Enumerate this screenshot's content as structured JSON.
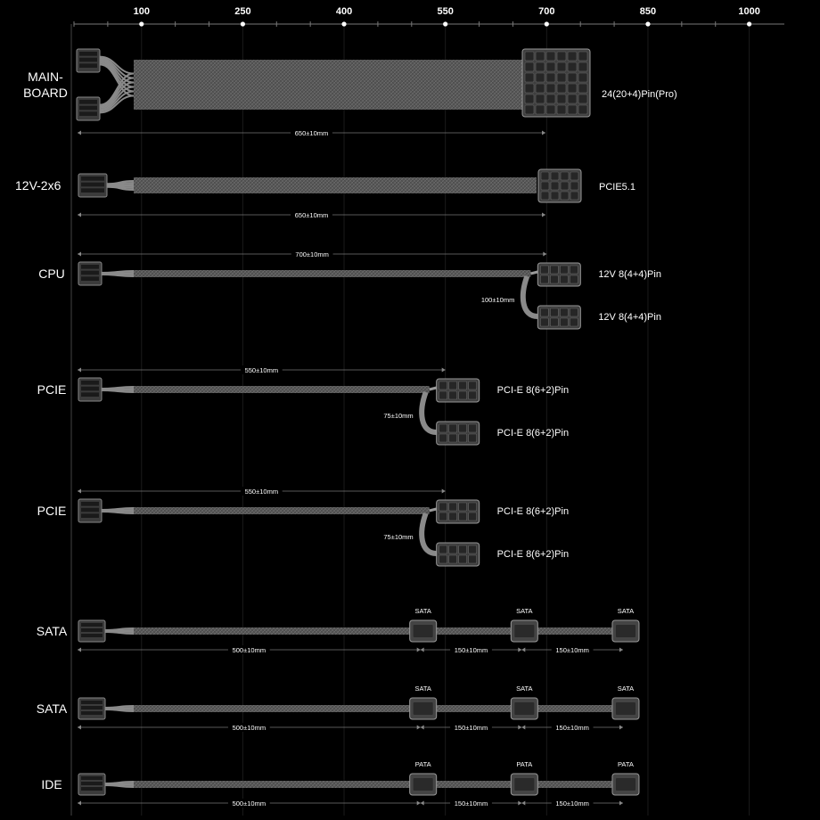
{
  "scale": {
    "ticks": [
      {
        "label": "100",
        "mm": 100
      },
      {
        "label": "250",
        "mm": 250
      },
      {
        "label": "400",
        "mm": 400
      },
      {
        "label": "550",
        "mm": 550
      },
      {
        "label": "700",
        "mm": 700
      },
      {
        "label": "850",
        "mm": 850
      },
      {
        "label": "1000",
        "mm": 1000
      }
    ]
  },
  "cables": [
    {
      "id": "mainboard",
      "kind": "wide",
      "label_lines": [
        "MAIN-",
        "BOARD"
      ],
      "length_mm": 650,
      "length_label": "650±10mm",
      "connectors": [
        {
          "label": "24(20+4)Pin(Pro)"
        }
      ]
    },
    {
      "id": "12v-2x6",
      "kind": "12v2x6",
      "label_lines": [
        "12V-2x6"
      ],
      "length_mm": 650,
      "length_label": "650±10mm",
      "connectors": [
        {
          "label": "PCIE5.1"
        }
      ]
    },
    {
      "id": "cpu",
      "kind": "split",
      "label_lines": [
        "CPU"
      ],
      "length_mm": 700,
      "length_label": "700±10mm",
      "branch_label": "100±10mm",
      "connectors": [
        {
          "label": "12V 8(4+4)Pin"
        },
        {
          "label": "12V 8(4+4)Pin"
        }
      ]
    },
    {
      "id": "pcie-1",
      "kind": "split",
      "label_lines": [
        "PCIE"
      ],
      "length_mm": 550,
      "length_label": "550±10mm",
      "branch_label": "75±10mm",
      "connectors": [
        {
          "label": "PCI-E 8(6+2)Pin"
        },
        {
          "label": "PCI-E 8(6+2)Pin"
        }
      ]
    },
    {
      "id": "pcie-2",
      "kind": "split",
      "label_lines": [
        "PCIE"
      ],
      "length_mm": 550,
      "length_label": "550±10mm",
      "branch_label": "75±10mm",
      "connectors": [
        {
          "label": "PCI-E 8(6+2)Pin"
        },
        {
          "label": "PCI-E 8(6+2)Pin"
        }
      ]
    },
    {
      "id": "sata-1",
      "kind": "chain",
      "label_lines": [
        "SATA"
      ],
      "length_mm": 500,
      "length_label": "500±10mm",
      "segment_labels": [
        "150±10mm",
        "150±10mm"
      ],
      "connectors": [
        {
          "label": "SATA"
        },
        {
          "label": "SATA"
        },
        {
          "label": "SATA"
        }
      ]
    },
    {
      "id": "sata-2",
      "kind": "chain",
      "label_lines": [
        "SATA"
      ],
      "length_mm": 500,
      "length_label": "500±10mm",
      "segment_labels": [
        "150±10mm",
        "150±10mm"
      ],
      "connectors": [
        {
          "label": "SATA"
        },
        {
          "label": "SATA"
        },
        {
          "label": "SATA"
        }
      ]
    },
    {
      "id": "ide",
      "kind": "chain",
      "label_lines": [
        "IDE"
      ],
      "length_mm": 500,
      "length_label": "500±10mm",
      "segment_labels": [
        "150±10mm",
        "150±10mm"
      ],
      "connectors": [
        {
          "label": "PATA"
        },
        {
          "label": "PATA"
        },
        {
          "label": "PATA"
        }
      ]
    }
  ]
}
